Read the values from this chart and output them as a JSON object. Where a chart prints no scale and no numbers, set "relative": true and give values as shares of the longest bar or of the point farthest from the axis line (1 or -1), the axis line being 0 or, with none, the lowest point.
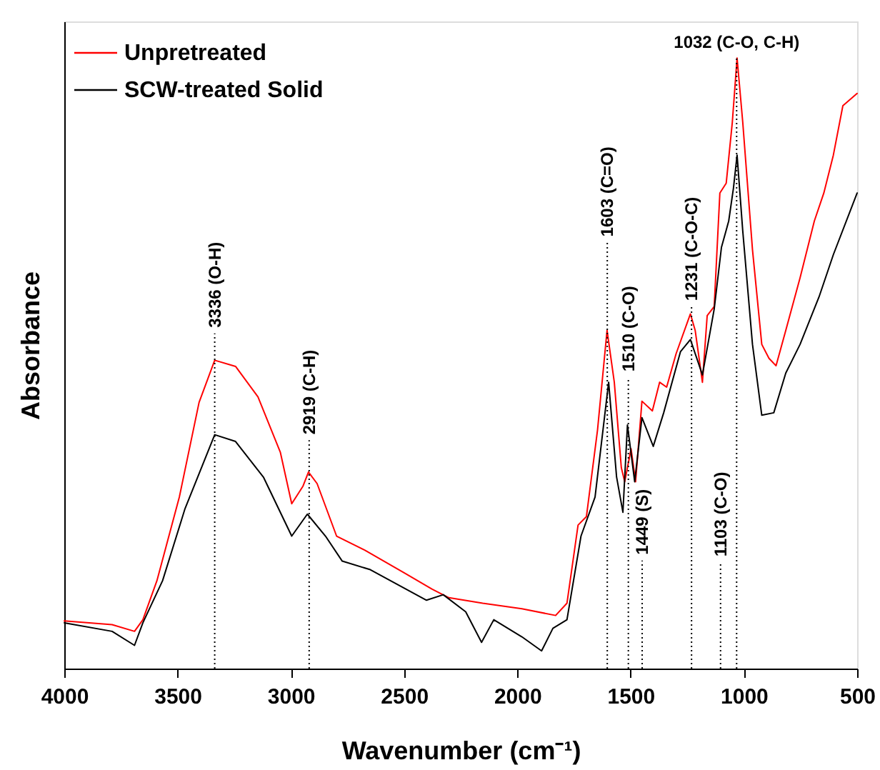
{
  "chart_data": {
    "type": "line",
    "relative": true,
    "xlabel": "Wavenumber (cm⁻¹)",
    "ylabel": "Absorbance",
    "xlim": [
      4000,
      500
    ],
    "xticks": [
      4000,
      3500,
      3000,
      2500,
      2000,
      1500,
      1000,
      500
    ],
    "grid": false,
    "legend": "top left",
    "line_style": "solid",
    "marker": "none",
    "series": [
      {
        "name": "Unpretreated",
        "color": "#ff0000",
        "x": [
          4000,
          3789,
          3690,
          3653,
          3591,
          3492,
          3405,
          3336,
          3244,
          3145,
          3046,
          2996,
          2946,
          2922,
          2884,
          2798,
          2674,
          2500,
          2376,
          2302,
          2153,
          1980,
          1831,
          1781,
          1732,
          1695,
          1646,
          1604,
          1572,
          1541,
          1526,
          1498,
          1478,
          1450,
          1404,
          1372,
          1341,
          1299,
          1236,
          1215,
          1183,
          1162,
          1131,
          1106,
          1078,
          1051,
          1030,
          1005,
          962,
          921,
          889,
          858,
          815,
          752,
          689,
          647,
          605,
          563,
          500
        ],
        "values": [
          0.078,
          0.072,
          0.061,
          0.08,
          0.144,
          0.281,
          0.436,
          0.505,
          0.495,
          0.445,
          0.354,
          0.27,
          0.299,
          0.322,
          0.303,
          0.217,
          0.194,
          0.157,
          0.13,
          0.116,
          0.107,
          0.098,
          0.087,
          0.107,
          0.235,
          0.249,
          0.391,
          0.554,
          0.469,
          0.329,
          0.306,
          0.36,
          0.306,
          0.438,
          0.422,
          0.469,
          0.461,
          0.516,
          0.581,
          0.554,
          0.469,
          0.578,
          0.593,
          0.779,
          0.795,
          0.895,
          1.0,
          0.895,
          0.686,
          0.531,
          0.508,
          0.496,
          0.554,
          0.64,
          0.733,
          0.779,
          0.841,
          0.922,
          0.942
        ]
      },
      {
        "name": "SCW-treated Solid",
        "color": "#000000",
        "x": [
          4000,
          3789,
          3690,
          3653,
          3566,
          3467,
          3336,
          3244,
          3120,
          2996,
          2927,
          2847,
          2773,
          2649,
          2401,
          2327,
          2228,
          2158,
          2104,
          1980,
          1893,
          1843,
          1781,
          1719,
          1657,
          1597,
          1562,
          1534,
          1514,
          1482,
          1450,
          1400,
          1354,
          1280,
          1236,
          1183,
          1131,
          1099,
          1067,
          1046,
          1030,
          1005,
          962,
          921,
          868,
          815,
          752,
          668,
          605,
          500
        ],
        "values": [
          0.075,
          0.061,
          0.038,
          0.075,
          0.144,
          0.262,
          0.383,
          0.372,
          0.313,
          0.217,
          0.253,
          0.217,
          0.176,
          0.162,
          0.112,
          0.121,
          0.093,
          0.043,
          0.08,
          0.052,
          0.029,
          0.066,
          0.08,
          0.217,
          0.281,
          0.469,
          0.314,
          0.256,
          0.399,
          0.306,
          0.411,
          0.364,
          0.419,
          0.519,
          0.539,
          0.481,
          0.589,
          0.69,
          0.733,
          0.787,
          0.841,
          0.717,
          0.531,
          0.415,
          0.419,
          0.484,
          0.531,
          0.609,
          0.678,
          0.779
        ]
      }
    ],
    "ref_lines": [
      {
        "axis": "x",
        "value": 3336,
        "color": "#000000",
        "line_style": "dotted"
      },
      {
        "axis": "x",
        "value": 2919,
        "color": "#000000",
        "line_style": "dotted"
      },
      {
        "axis": "x",
        "value": 1603,
        "color": "#000000",
        "line_style": "dotted"
      },
      {
        "axis": "x",
        "value": 1510,
        "color": "#000000",
        "line_style": "dotted"
      },
      {
        "axis": "x",
        "value": 1449,
        "color": "#000000",
        "line_style": "dotted"
      },
      {
        "axis": "x",
        "value": 1231,
        "color": "#000000",
        "line_style": "dotted"
      },
      {
        "axis": "x",
        "value": 1103,
        "color": "#000000",
        "line_style": "dotted"
      },
      {
        "axis": "x",
        "value": 1032,
        "color": "#000000",
        "line_style": "dotted"
      }
    ],
    "annotations": [
      {
        "text": "3336 (O-H)",
        "x": 3336,
        "y": 0.549
      },
      {
        "text": "2919 (C-H)",
        "x": 2919,
        "y": 0.374
      },
      {
        "text": "1603 (C=O)",
        "x": 1603,
        "y": 0.698
      },
      {
        "text": "1510 (C-O)",
        "x": 1510,
        "y": 0.477
      },
      {
        "text": "1449 (S)",
        "x": 1449,
        "y": 0.177
      },
      {
        "text": "1231 (C-O-C)",
        "x": 1231,
        "y": 0.593
      },
      {
        "text": "1103 (C-O)",
        "x": 1103,
        "y": 0.174
      },
      {
        "text": "1032 (C-O, C-H)",
        "x": 1032,
        "y": 1.0
      }
    ]
  }
}
